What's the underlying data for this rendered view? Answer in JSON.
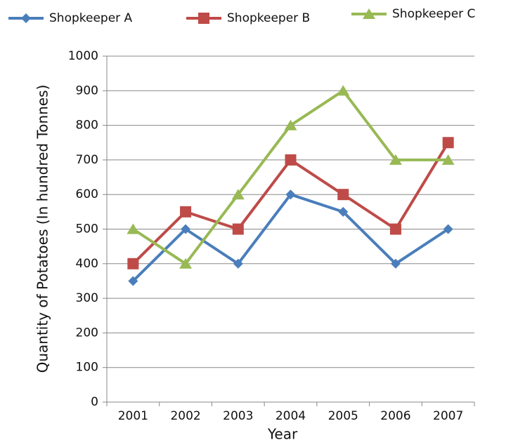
{
  "chart_data": {
    "type": "line",
    "x_label": "Year",
    "y_label": "Quantity of Potatoes (In hundred Tonnes)",
    "categories": [
      "2001",
      "2002",
      "2003",
      "2004",
      "2005",
      "2006",
      "2007"
    ],
    "series": [
      {
        "name": "Shopkeeper A",
        "color": "#4a7ebb",
        "marker": "diamond",
        "values": [
          350,
          500,
          400,
          600,
          550,
          400,
          500
        ]
      },
      {
        "name": "Shopkeeper B",
        "color": "#be4b48",
        "marker": "square",
        "values": [
          400,
          550,
          500,
          700,
          600,
          500,
          750
        ]
      },
      {
        "name": "Shopkeeper C",
        "color": "#98b954",
        "marker": "triangle",
        "values": [
          500,
          400,
          600,
          800,
          900,
          700,
          700
        ]
      }
    ],
    "ylim": [
      0,
      1000
    ],
    "yticks": [
      0,
      100,
      200,
      300,
      400,
      500,
      600,
      700,
      800,
      900,
      1000
    ],
    "grid": true,
    "legend": "top"
  }
}
